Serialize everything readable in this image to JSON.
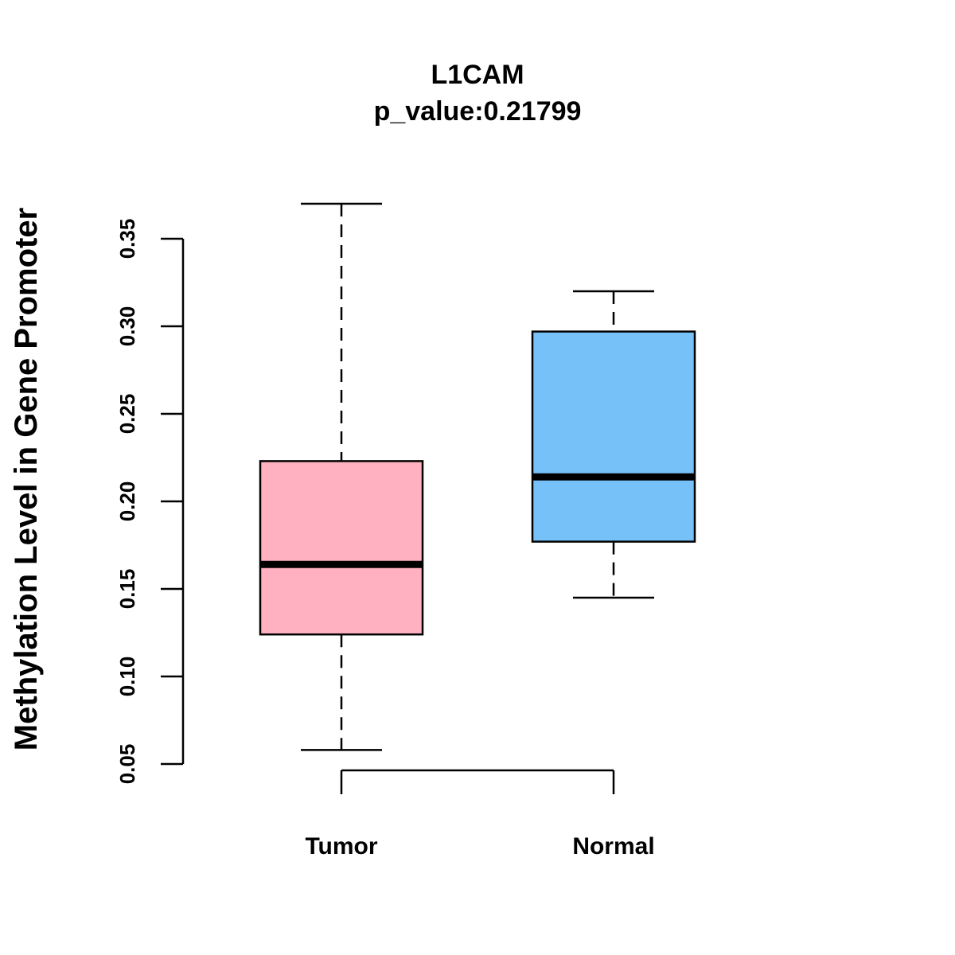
{
  "chart_data": {
    "type": "boxplot",
    "title": "L1CAM",
    "subtitle": "p_value:0.21799",
    "xlabel": "",
    "ylabel": "Methylation Level in Gene Promoter",
    "ylim": [
      0.05,
      0.35
    ],
    "yticks": [
      0.05,
      0.1,
      0.15,
      0.2,
      0.25,
      0.3,
      0.35
    ],
    "ytick_labels": [
      "0.05",
      "0.10",
      "0.15",
      "0.20",
      "0.25",
      "0.30",
      "0.35"
    ],
    "categories": [
      "Tumor",
      "Normal"
    ],
    "boxes": [
      {
        "name": "Tumor",
        "min": 0.058,
        "q1": 0.124,
        "median": 0.164,
        "q3": 0.223,
        "max": 0.37,
        "color": "#FFB1C1"
      },
      {
        "name": "Normal",
        "min": 0.145,
        "q1": 0.177,
        "median": 0.214,
        "q3": 0.297,
        "max": 0.32,
        "color": "#77C1F9"
      }
    ],
    "grid": false,
    "legend": "none"
  }
}
